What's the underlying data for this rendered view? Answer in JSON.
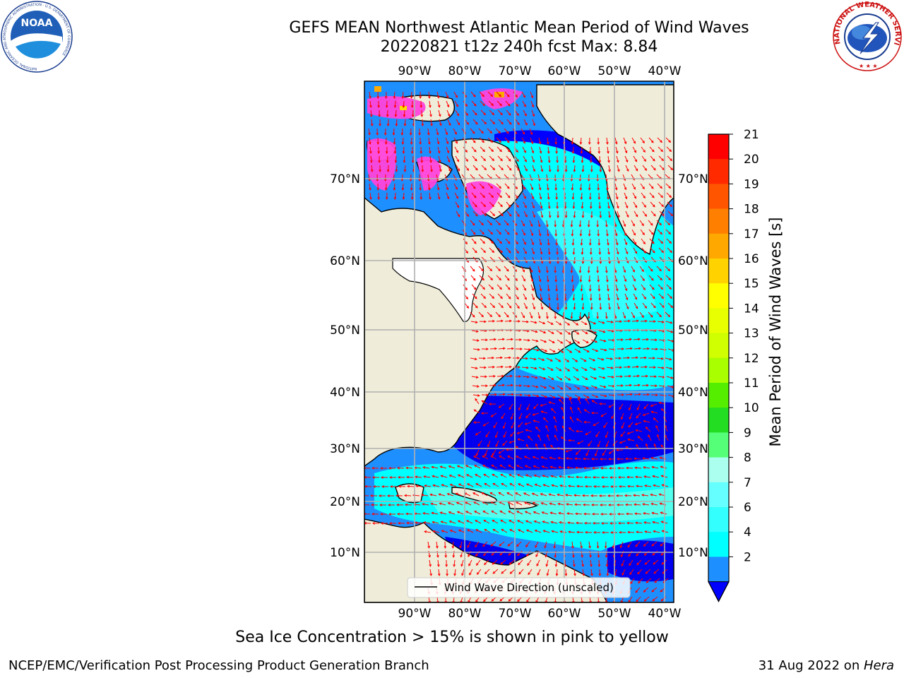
{
  "header": {
    "title_line1": "GEFS MEAN Northwest Atlantic Mean Period of Wind Waves",
    "title_line2": "20220821 t12z 240h fcst   Max: 8.84"
  },
  "logos": {
    "left": "NOAA",
    "left_ring_text": "NATIONAL OCEANIC AND ATMOSPHERIC ADMINISTRATION · U.S. DEPARTMENT OF COMMERCE",
    "right_ring_text": "NATIONAL WEATHER SERVICE"
  },
  "map": {
    "lon_labels": [
      "90°W",
      "80°W",
      "70°W",
      "60°W",
      "50°W",
      "40°W"
    ],
    "lat_labels": [
      "70°N",
      "60°N",
      "50°N",
      "40°N",
      "30°N",
      "20°N",
      "10°N"
    ],
    "legend_label": "Wind Wave Direction (unscaled)",
    "arrow_color": "#ff0000",
    "land_color": "#efedda",
    "ice_color": "#ff44dd"
  },
  "colorbar": {
    "label": "Mean Period of Wind Waves [s]",
    "ticks": [
      "21",
      "20",
      "19",
      "18",
      "17",
      "16",
      "15",
      "14",
      "13",
      "12",
      "11",
      "10",
      "9",
      "8",
      "7",
      "6",
      "4",
      "2"
    ],
    "colors_top_to_bottom": [
      "#ff0000",
      "#ff2a00",
      "#ff5500",
      "#ff7f00",
      "#ffa800",
      "#ffd200",
      "#ffff00",
      "#e7ff00",
      "#cfff00",
      "#a9ff00",
      "#55ee00",
      "#22dd22",
      "#55ff77",
      "#aaffee",
      "#66ffff",
      "#33ffff",
      "#00ffff",
      "#1e8fff"
    ],
    "extend_color": "#0000ff"
  },
  "caption": "Sea Ice Concentration > 15% is shown in pink to yellow",
  "footer": {
    "left": "NCEP/EMC/Verification Post Processing Product Generation Branch",
    "date": "31 Aug 2022 on ",
    "machine": "Hera"
  }
}
